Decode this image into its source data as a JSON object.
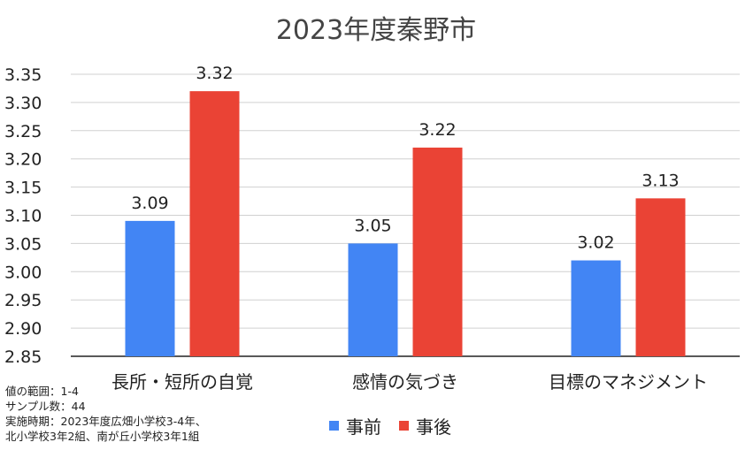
{
  "chart_data": {
    "type": "bar",
    "title": "2023年度秦野市",
    "categories": [
      "長所・短所の自覚",
      "感情の気づき",
      "目標のマネジメント"
    ],
    "series": [
      {
        "name": "事前",
        "values": [
          3.09,
          3.05,
          3.02
        ],
        "color": "#4285F4"
      },
      {
        "name": "事後",
        "values": [
          3.32,
          3.22,
          3.13
        ],
        "color": "#EA4335"
      }
    ],
    "ylim": [
      2.85,
      3.35
    ],
    "yticks": [
      "3.35",
      "3.30",
      "3.25",
      "3.20",
      "3.15",
      "3.10",
      "3.05",
      "3.00",
      "2.95",
      "2.90",
      "2.85"
    ],
    "grid": true,
    "legend_position": "bottom",
    "notes": [
      "値の範囲：1-4",
      "サンプル数：44",
      "実施時期：2023年度広畑小学校3-4年、",
      "北小学校3年2組、南が丘小学校3年1組"
    ]
  }
}
